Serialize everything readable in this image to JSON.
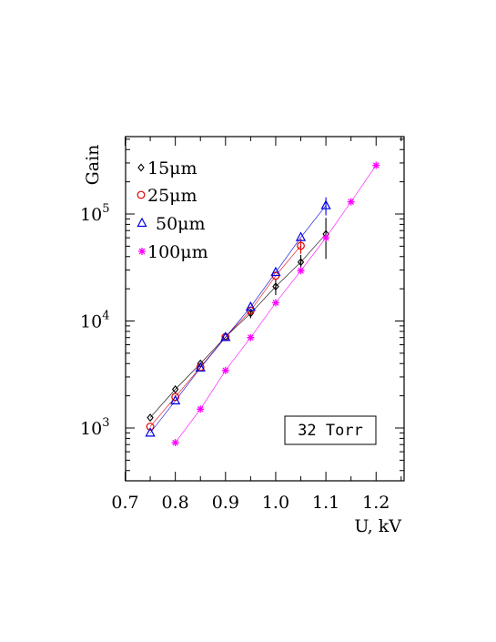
{
  "chart_data": {
    "type": "scatter",
    "title": "",
    "xlabel": "U,  kV",
    "ylabel": "Gain",
    "xlim": [
      0.7,
      1.25
    ],
    "ylim": [
      300,
      500000
    ],
    "yscale": "log",
    "x_ticks": [
      "0.7",
      "0.8",
      "0.9",
      "1.0",
      "1.1",
      "1.2"
    ],
    "x_tick_values": [
      0.7,
      0.8,
      0.9,
      1.0,
      1.1,
      1.2
    ],
    "y_ticks": [
      {
        "base": "10",
        "exp": "3"
      },
      {
        "base": "10",
        "exp": "4"
      },
      {
        "base": "10",
        "exp": "5"
      }
    ],
    "y_tick_values": [
      1000,
      10000,
      100000
    ],
    "legend_position": "top-left",
    "annotation": "32 Torr",
    "series": [
      {
        "name": "15μm",
        "color": "#000000",
        "marker": "diamond",
        "x": [
          0.75,
          0.8,
          0.85,
          0.9,
          0.95,
          1.0,
          1.05,
          1.1
        ],
        "y": [
          1250,
          2300,
          4000,
          7100,
          11800,
          21000,
          35500,
          65000
        ],
        "yerr": [
          0,
          0,
          0,
          0,
          1200,
          3500,
          6000,
          27000
        ]
      },
      {
        "name": "25μm",
        "color": "#e00000",
        "marker": "circle",
        "x": [
          0.75,
          0.8,
          0.85,
          0.9,
          0.95,
          1.0,
          1.05
        ],
        "y": [
          1030,
          1950,
          3700,
          7100,
          12500,
          26500,
          50500
        ],
        "yerr": [
          0,
          0,
          0,
          0,
          0,
          0,
          8000
        ]
      },
      {
        "name": "50μm",
        "color": "#0000e0",
        "marker": "triangle",
        "x": [
          0.75,
          0.8,
          0.85,
          0.9,
          0.95,
          1.0,
          1.05,
          1.1
        ],
        "y": [
          900,
          1800,
          3650,
          7050,
          13500,
          28500,
          60500,
          120000
        ],
        "yerr": [
          0,
          0,
          0,
          0,
          0,
          0,
          0,
          23000
        ]
      },
      {
        "name": "100μm",
        "color": "#ff00ff",
        "marker": "asterisk",
        "x": [
          0.8,
          0.85,
          0.9,
          0.95,
          1.0,
          1.05,
          1.1,
          1.15,
          1.2
        ],
        "y": [
          730,
          1500,
          3450,
          7000,
          14800,
          29500,
          60000,
          130000,
          285000
        ],
        "yerr": [
          0,
          0,
          0,
          0,
          0,
          0,
          0,
          0,
          0
        ]
      }
    ]
  }
}
